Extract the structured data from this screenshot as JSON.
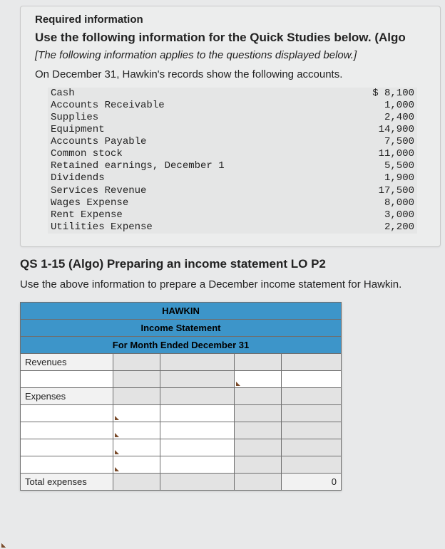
{
  "card": {
    "label": "Required information",
    "title": "Use the following information for the Quick Studies below. (Algo",
    "note": "[The following information applies to the questions displayed below.]",
    "line": "On December 31, Hawkin's records show the following accounts."
  },
  "accounts": [
    {
      "name": "Cash",
      "value": "$ 8,100"
    },
    {
      "name": "Accounts Receivable",
      "value": "1,000"
    },
    {
      "name": "Supplies",
      "value": "2,400"
    },
    {
      "name": "Equipment",
      "value": "14,900"
    },
    {
      "name": "Accounts Payable",
      "value": "7,500"
    },
    {
      "name": "Common stock",
      "value": "11,000"
    },
    {
      "name": "Retained earnings, December 1",
      "value": "5,500"
    },
    {
      "name": "Dividends",
      "value": "1,900"
    },
    {
      "name": "Services Revenue",
      "value": "17,500"
    },
    {
      "name": "Wages Expense",
      "value": "8,000"
    },
    {
      "name": "Rent Expense",
      "value": "3,000"
    },
    {
      "name": "Utilities Expense",
      "value": "2,200"
    }
  ],
  "qs": {
    "title": "QS 1-15 (Algo) Preparing an income statement LO P2",
    "instr": "Use the above information to prepare a December income statement for Hawkin."
  },
  "worksheet": {
    "hdr1": "HAWKIN",
    "hdr2": "Income Statement",
    "hdr3": "For Month Ended December 31",
    "revenues_label": "Revenues",
    "expenses_label": "Expenses",
    "total_expenses_label": "Total expenses",
    "total_expenses_value": "0",
    "header_bg": "#3d95c9",
    "border_color": "#6f6f6f"
  }
}
